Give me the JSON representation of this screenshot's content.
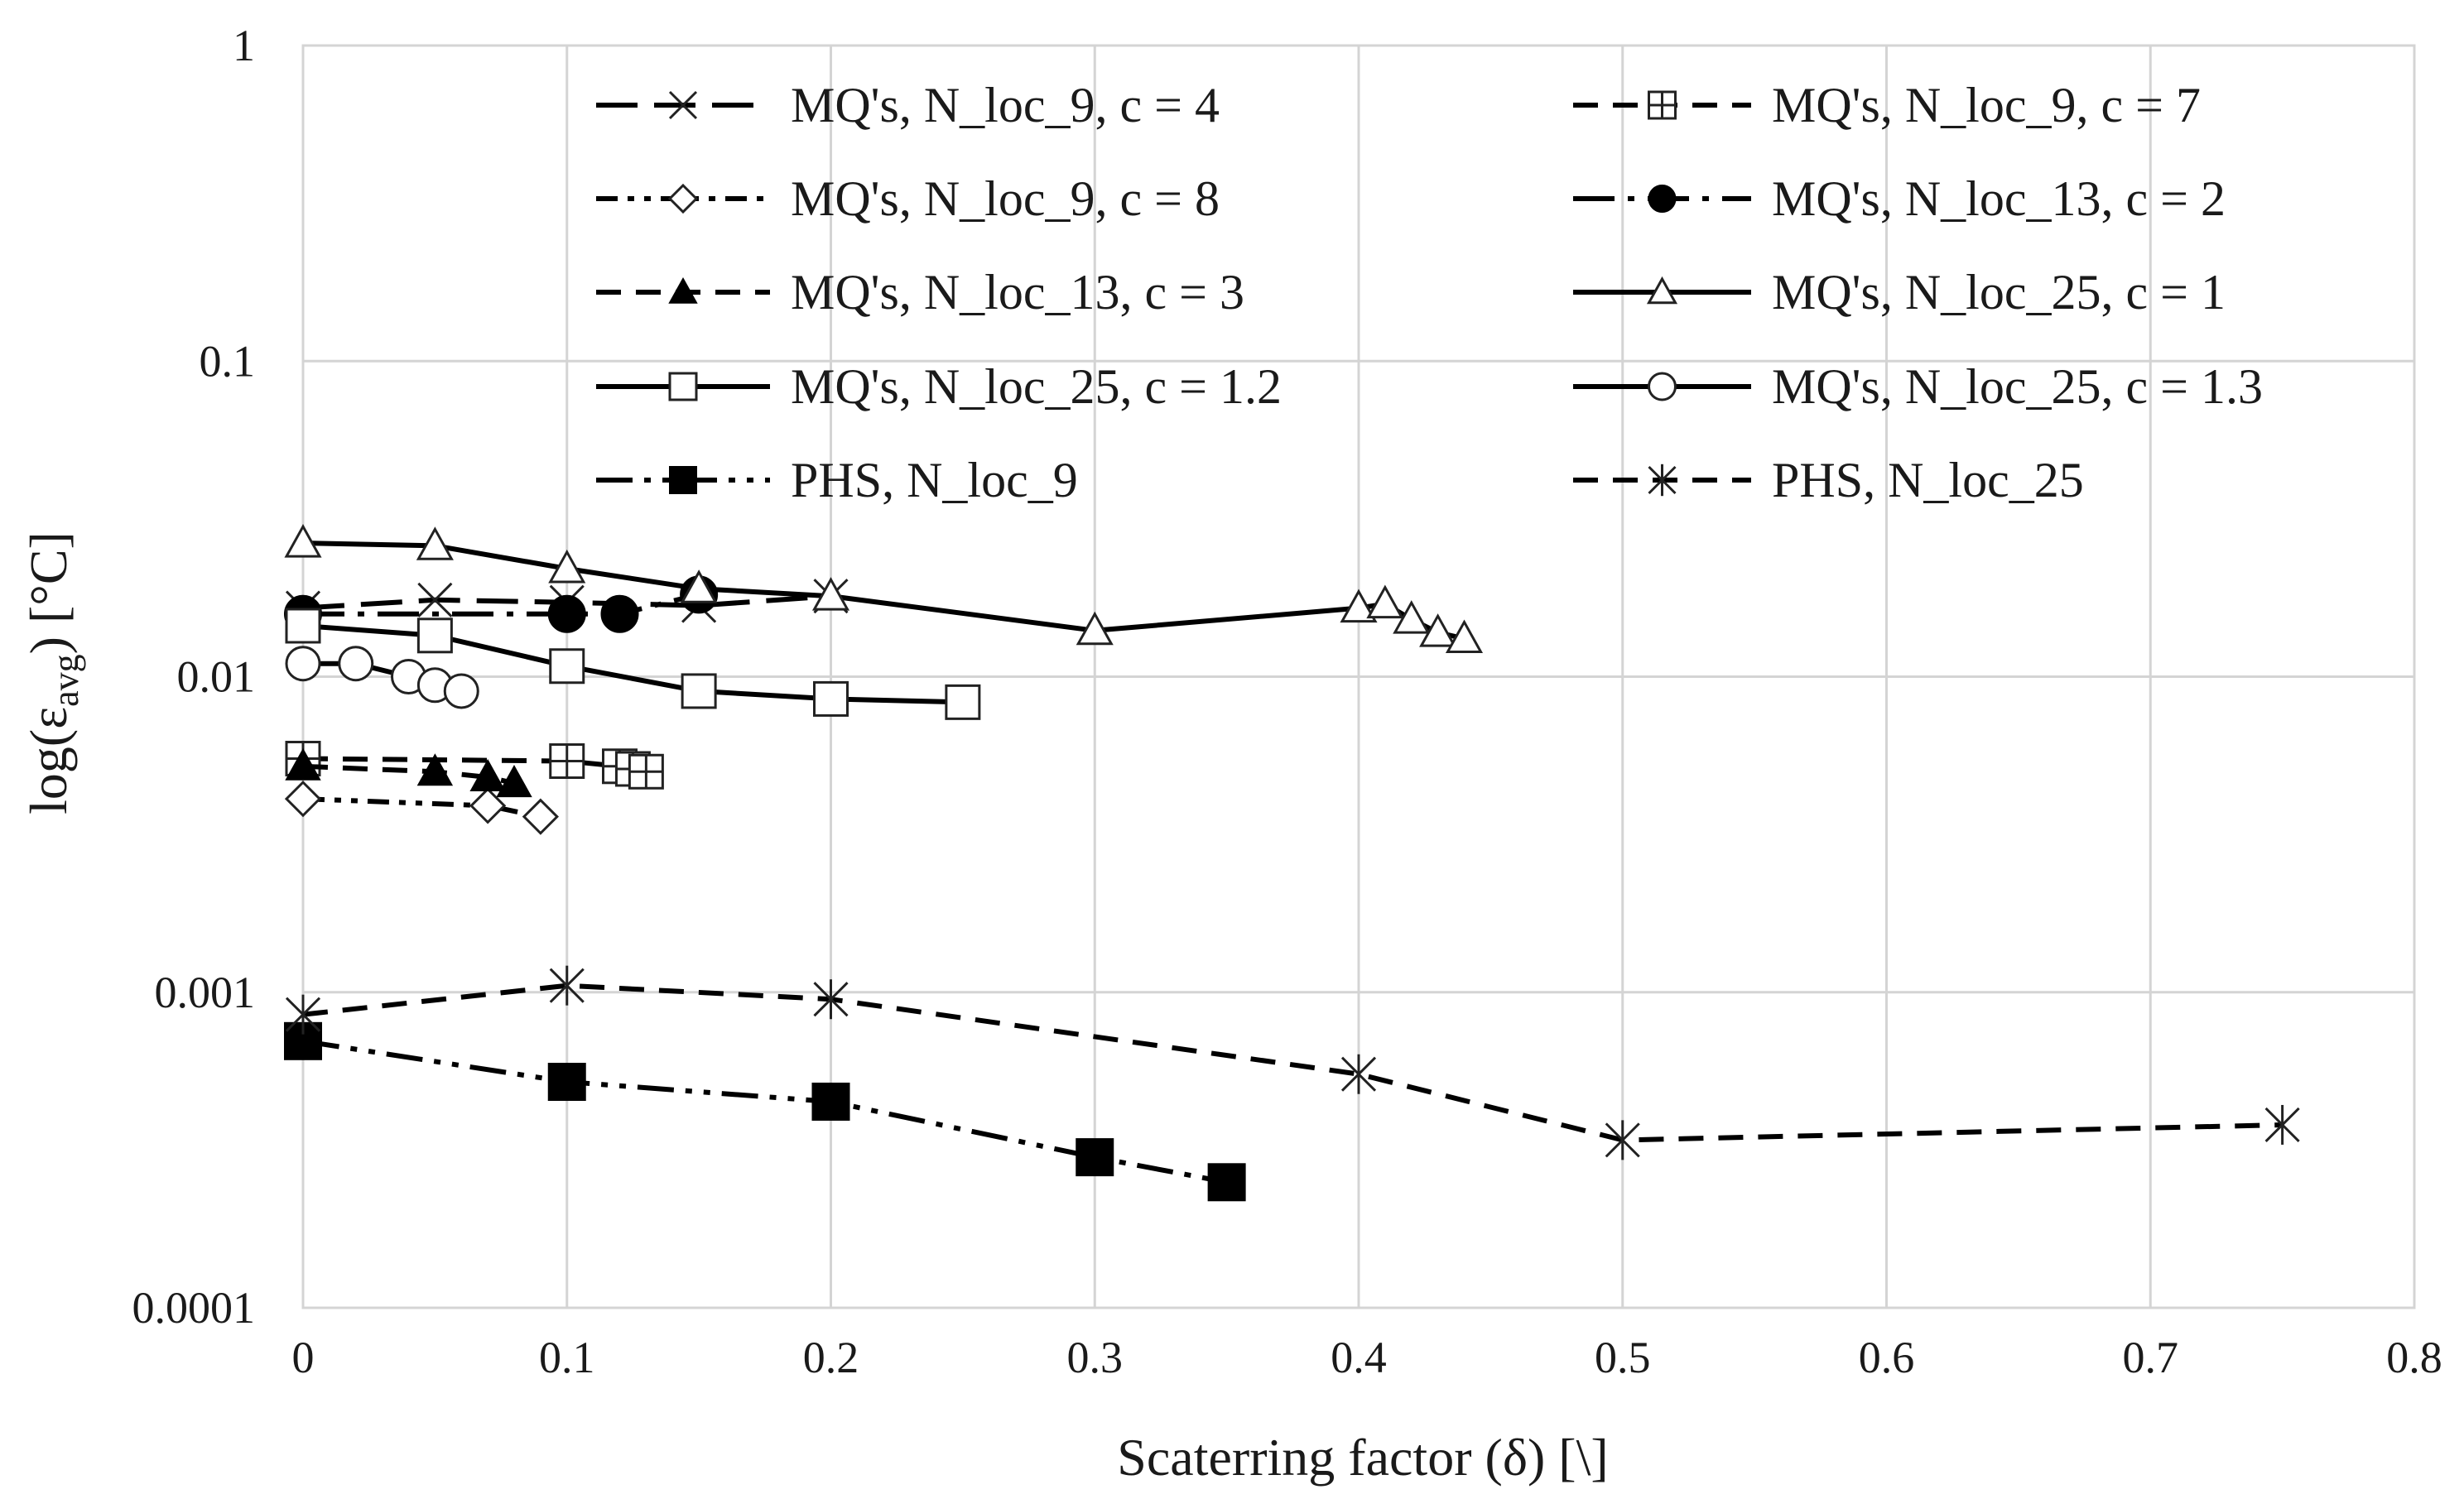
{
  "chart_data": {
    "type": "line",
    "title": "",
    "xlabel": "Scaterring factor (δ) [\\]",
    "ylabel": "log(εavg) [°C]",
    "ylabel_parts": {
      "prefix": "log(ε",
      "sub": "avg",
      "suffix": ") [°C]"
    },
    "xlim": [
      0,
      0.8
    ],
    "ylim": [
      0.0001,
      1
    ],
    "yscale": "log",
    "x_ticks": [
      "0",
      "0.1",
      "0.2",
      "0.3",
      "0.4",
      "0.5",
      "0.6",
      "0.7",
      "0.8"
    ],
    "x_tick_values": [
      0,
      0.1,
      0.2,
      0.3,
      0.4,
      0.5,
      0.6,
      0.7,
      0.8
    ],
    "y_ticks": [
      "0.0001",
      "0.001",
      "0.01",
      "0.1",
      "1"
    ],
    "y_tick_values": [
      0.0001,
      0.001,
      0.01,
      0.1,
      1
    ],
    "grid": true,
    "legend_position": "top",
    "series": [
      {
        "name": "MQ's, N_loc_9, c = 4",
        "marker": "x",
        "dash": "longdash",
        "color": "#000000",
        "x": [
          0,
          0.05,
          0.1,
          0.15,
          0.2
        ],
        "y": [
          0.0165,
          0.0175,
          0.0172,
          0.0168,
          0.018
        ]
      },
      {
        "name": "MQ's, N_loc_9, c = 7",
        "marker": "square-plus",
        "dash": "dash",
        "color": "#000000",
        "x": [
          0,
          0.1,
          0.12,
          0.125,
          0.13
        ],
        "y": [
          0.0055,
          0.0054,
          0.0052,
          0.0051,
          0.005
        ]
      },
      {
        "name": "MQ's, N_loc_9, c = 8",
        "marker": "diamond",
        "dash": "dashdotdot",
        "color": "#000000",
        "x": [
          0,
          0.07,
          0.09
        ],
        "y": [
          0.0041,
          0.0039,
          0.0036
        ]
      },
      {
        "name": "MQ's, N_loc_13, c = 2",
        "marker": "circle-filled",
        "dash": "longdashdot",
        "color": "#000000",
        "x": [
          0,
          0.1,
          0.12,
          0.15
        ],
        "y": [
          0.0158,
          0.0158,
          0.0158,
          0.0182
        ]
      },
      {
        "name": "MQ's, N_loc_13, c = 3",
        "marker": "triangle-filled",
        "dash": "dash",
        "color": "#000000",
        "x": [
          0,
          0.05,
          0.07,
          0.08
        ],
        "y": [
          0.0052,
          0.005,
          0.0048,
          0.0046
        ]
      },
      {
        "name": "MQ's, N_loc_25, c = 1",
        "marker": "triangle",
        "dash": "solid",
        "color": "#000000",
        "x": [
          0,
          0.05,
          0.1,
          0.15,
          0.2,
          0.3,
          0.4,
          0.41,
          0.42,
          0.43,
          0.44
        ],
        "y": [
          0.0265,
          0.026,
          0.022,
          0.019,
          0.018,
          0.014,
          0.0165,
          0.017,
          0.0152,
          0.0138,
          0.0132
        ]
      },
      {
        "name": "MQ's, N_loc_25, c = 1.2",
        "marker": "square",
        "dash": "solid",
        "color": "#000000",
        "x": [
          0,
          0.05,
          0.1,
          0.15,
          0.2,
          0.25
        ],
        "y": [
          0.0145,
          0.0135,
          0.0108,
          0.009,
          0.0085,
          0.0083
        ]
      },
      {
        "name": "MQ's, N_loc_25, c = 1.3",
        "marker": "circle",
        "dash": "solid",
        "color": "#000000",
        "x": [
          0,
          0.02,
          0.04,
          0.05,
          0.06
        ],
        "y": [
          0.011,
          0.011,
          0.01,
          0.0094,
          0.009
        ]
      },
      {
        "name": "PHS, N_loc_9",
        "marker": "square-filled",
        "dash": "longdashdotdot",
        "color": "#000000",
        "x": [
          0,
          0.1,
          0.2,
          0.3,
          0.35
        ],
        "y": [
          0.0007,
          0.00052,
          0.00045,
          0.0003,
          0.00025
        ]
      },
      {
        "name": "PHS, N_loc_25",
        "marker": "asterisk",
        "dash": "dash",
        "color": "#000000",
        "x": [
          0,
          0.1,
          0.2,
          0.4,
          0.5,
          0.75
        ],
        "y": [
          0.00085,
          0.00105,
          0.00095,
          0.00055,
          0.00034,
          0.00038
        ]
      }
    ]
  }
}
